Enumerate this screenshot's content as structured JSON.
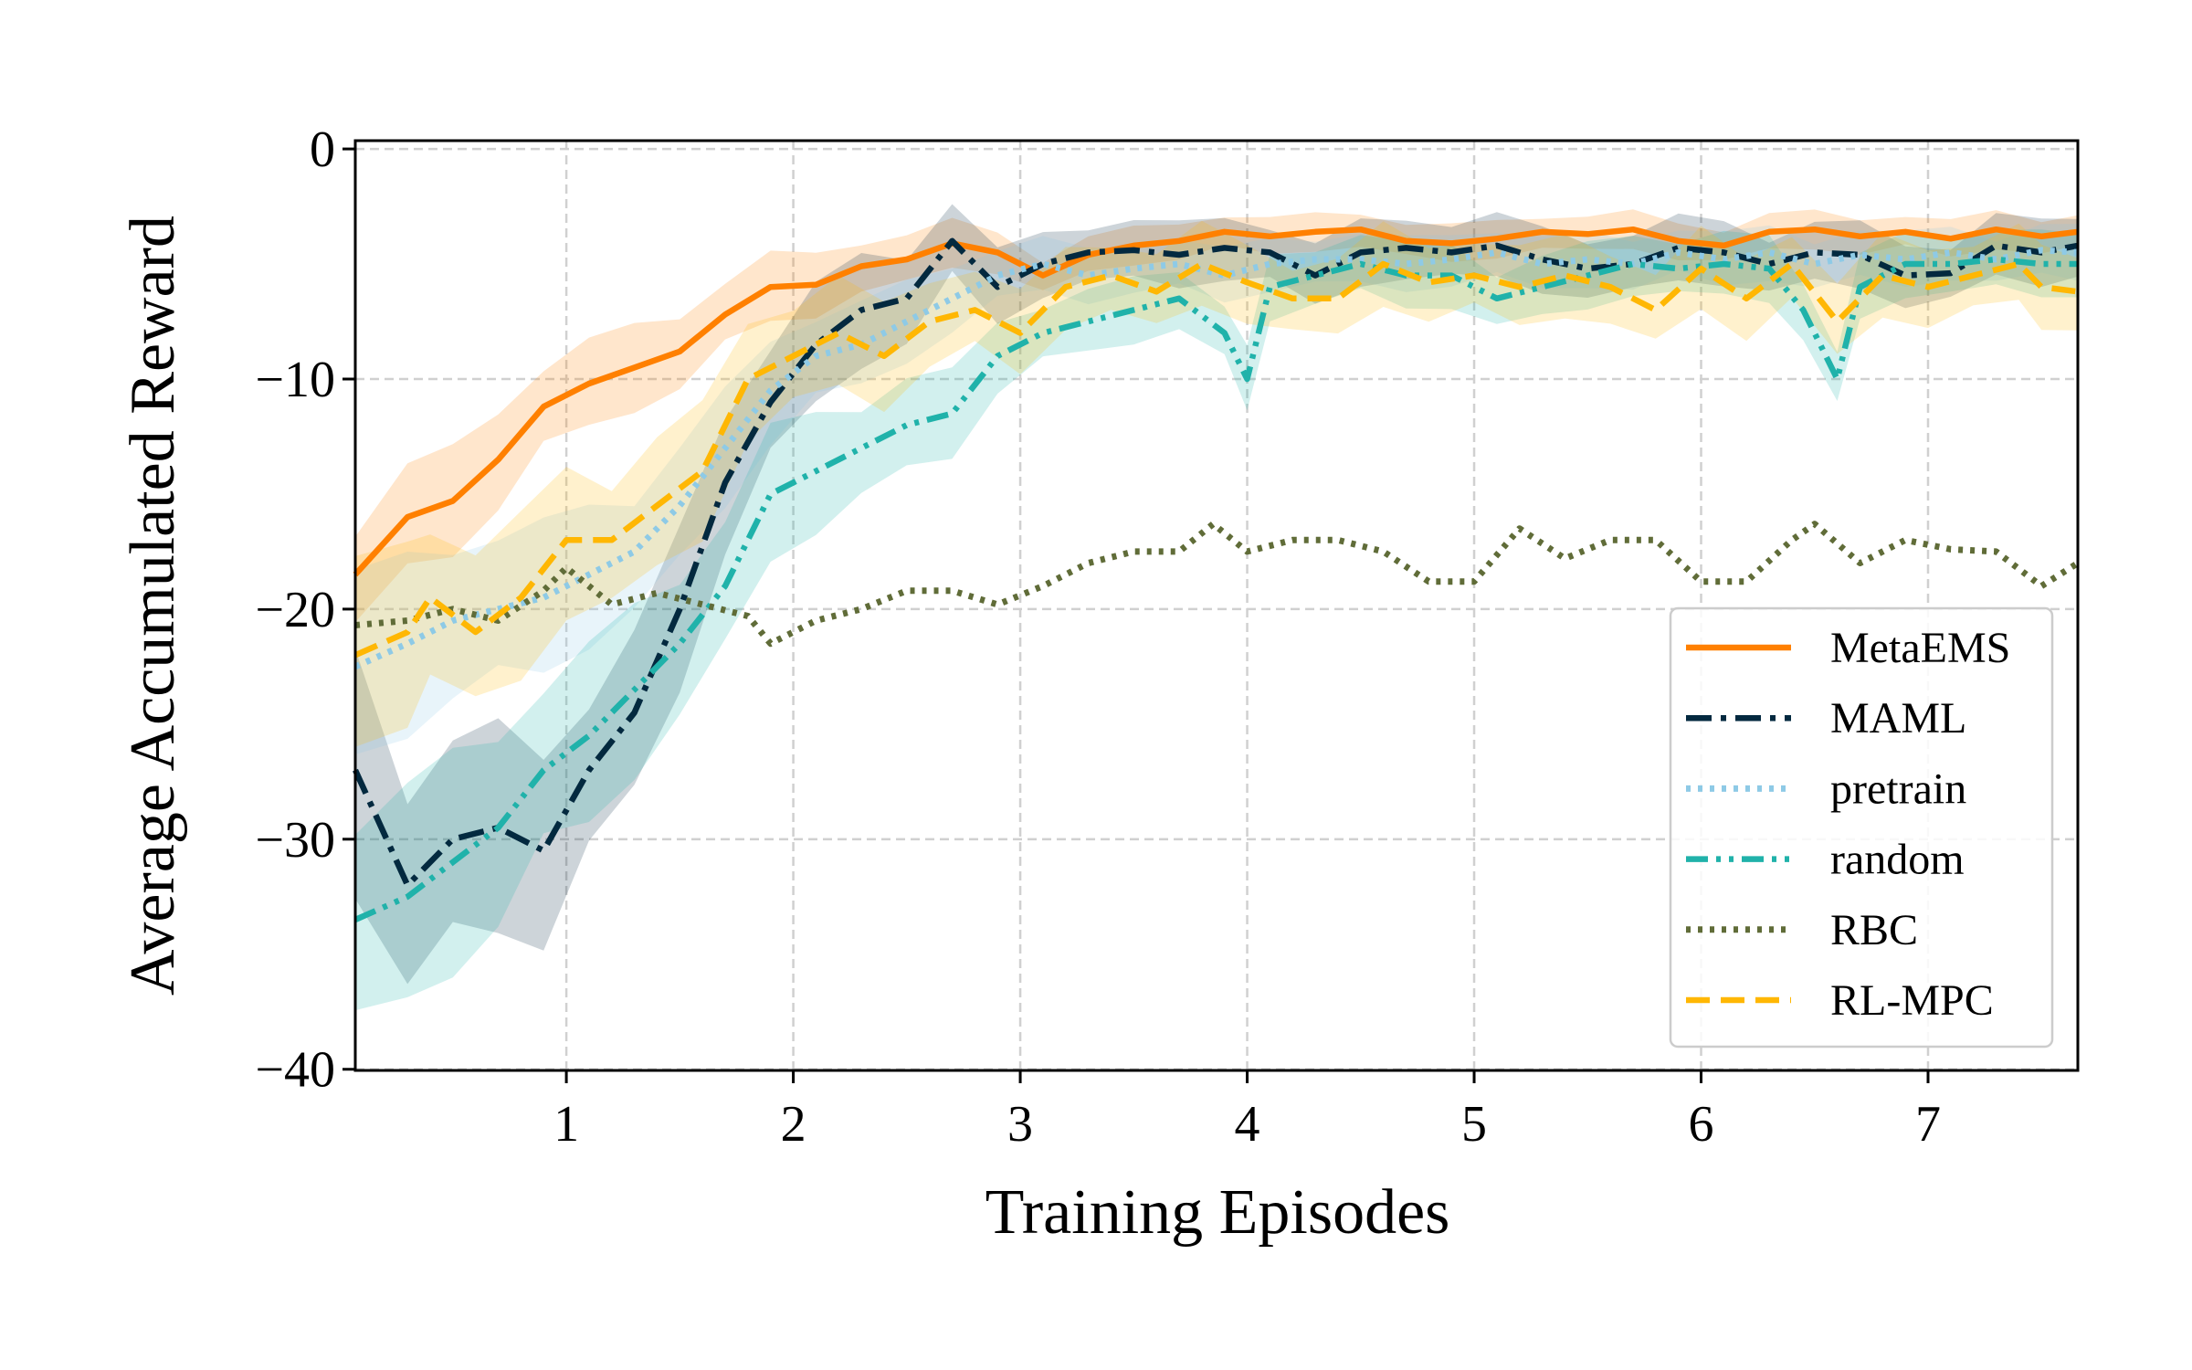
{
  "chart_data": {
    "type": "line",
    "title": "",
    "xlabel": "Training Episodes",
    "ylabel": "Average Accumulated Reward",
    "xlim": [
      0.07,
      7.66
    ],
    "ylim": [
      -40.05,
      0.36
    ],
    "xticks": [
      1,
      2,
      3,
      4,
      5,
      6,
      7
    ],
    "xtick_labels": [
      "1",
      "2",
      "3",
      "4",
      "5",
      "6",
      "7"
    ],
    "yticks": [
      0,
      -10,
      -20,
      -30,
      -40
    ],
    "ytick_labels": [
      "0",
      "−10",
      "−20",
      "−30",
      "−40"
    ],
    "grid": true,
    "legend_position": "lower-right",
    "series": [
      {
        "name": "MetaEMS",
        "color": "#ff8000",
        "style": "solid",
        "std_early": 2.2,
        "std_late": 0.7,
        "points": [
          [
            0.07,
            -18.5
          ],
          [
            0.3,
            -16
          ],
          [
            0.5,
            -15.3
          ],
          [
            0.7,
            -13.5
          ],
          [
            0.9,
            -11.2
          ],
          [
            1.1,
            -10.2
          ],
          [
            1.3,
            -9.5
          ],
          [
            1.5,
            -8.8
          ],
          [
            1.7,
            -7.2
          ],
          [
            1.9,
            -6
          ],
          [
            2.1,
            -5.9
          ],
          [
            2.3,
            -5.1
          ],
          [
            2.5,
            -4.8
          ],
          [
            2.7,
            -4.1
          ],
          [
            2.9,
            -4.5
          ],
          [
            3.1,
            -5.5
          ],
          [
            3.3,
            -4.6
          ],
          [
            3.5,
            -4.2
          ],
          [
            3.7,
            -4.0
          ],
          [
            3.9,
            -3.6
          ],
          [
            4.1,
            -3.8
          ],
          [
            4.3,
            -3.6
          ],
          [
            4.5,
            -3.5
          ],
          [
            4.7,
            -4
          ],
          [
            4.9,
            -4.1
          ],
          [
            5.1,
            -3.9
          ],
          [
            5.3,
            -3.6
          ],
          [
            5.5,
            -3.7
          ],
          [
            5.7,
            -3.5
          ],
          [
            5.9,
            -4.0
          ],
          [
            6.1,
            -4.2
          ],
          [
            6.3,
            -3.6
          ],
          [
            6.5,
            -3.5
          ],
          [
            6.7,
            -3.8
          ],
          [
            6.9,
            -3.6
          ],
          [
            7.1,
            -3.9
          ],
          [
            7.3,
            -3.5
          ],
          [
            7.5,
            -3.8
          ],
          [
            7.66,
            -3.6
          ]
        ]
      },
      {
        "name": "MAML",
        "color": "#03293f",
        "style": "dashdot",
        "std_early": 4.5,
        "std_late": 1.2,
        "points": [
          [
            0.07,
            -27
          ],
          [
            0.3,
            -32
          ],
          [
            0.5,
            -30
          ],
          [
            0.7,
            -29.5
          ],
          [
            0.9,
            -30.5
          ],
          [
            1.1,
            -27
          ],
          [
            1.3,
            -24.5
          ],
          [
            1.5,
            -20
          ],
          [
            1.7,
            -14.5
          ],
          [
            1.9,
            -11
          ],
          [
            2.1,
            -8.5
          ],
          [
            2.3,
            -7
          ],
          [
            2.5,
            -6.5
          ],
          [
            2.7,
            -4
          ],
          [
            2.9,
            -6
          ],
          [
            3.1,
            -5
          ],
          [
            3.3,
            -4.5
          ],
          [
            3.5,
            -4.4
          ],
          [
            3.7,
            -4.6
          ],
          [
            3.9,
            -4.3
          ],
          [
            4.1,
            -4.5
          ],
          [
            4.3,
            -5.5
          ],
          [
            4.5,
            -4.5
          ],
          [
            4.7,
            -4.3
          ],
          [
            4.9,
            -4.5
          ],
          [
            5.1,
            -4.2
          ],
          [
            5.3,
            -4.8
          ],
          [
            5.5,
            -5.2
          ],
          [
            5.7,
            -5
          ],
          [
            5.9,
            -4.3
          ],
          [
            6.1,
            -4.5
          ],
          [
            6.3,
            -5
          ],
          [
            6.5,
            -4.5
          ],
          [
            6.7,
            -4.6
          ],
          [
            6.9,
            -5.5
          ],
          [
            7.1,
            -5.4
          ],
          [
            7.3,
            -4.2
          ],
          [
            7.5,
            -4.5
          ],
          [
            7.66,
            -4.2
          ]
        ]
      },
      {
        "name": "pretrain",
        "color": "#8ecae6",
        "style": "dotted",
        "std_early": 3.5,
        "std_late": 1.0,
        "points": [
          [
            0.07,
            -22.5
          ],
          [
            0.3,
            -21.5
          ],
          [
            0.5,
            -20.5
          ],
          [
            0.7,
            -20
          ],
          [
            0.9,
            -19.5
          ],
          [
            1.1,
            -18.5
          ],
          [
            1.3,
            -17.5
          ],
          [
            1.5,
            -15.5
          ],
          [
            1.7,
            -13
          ],
          [
            1.9,
            -10.5
          ],
          [
            2.1,
            -9
          ],
          [
            2.3,
            -8.5
          ],
          [
            2.5,
            -7.5
          ],
          [
            2.7,
            -6.5
          ],
          [
            2.9,
            -5.5
          ],
          [
            3.1,
            -5
          ],
          [
            3.3,
            -5.5
          ],
          [
            3.5,
            -5.2
          ],
          [
            3.7,
            -5
          ],
          [
            3.9,
            -5.5
          ],
          [
            4.1,
            -5
          ],
          [
            4.3,
            -4.8
          ],
          [
            4.5,
            -4.8
          ],
          [
            4.7,
            -5
          ],
          [
            4.9,
            -4.8
          ],
          [
            5.1,
            -4.5
          ],
          [
            5.3,
            -5
          ],
          [
            5.5,
            -4.8
          ],
          [
            5.7,
            -5
          ],
          [
            5.9,
            -4.5
          ],
          [
            6.1,
            -4.8
          ],
          [
            6.3,
            -4.5
          ],
          [
            6.5,
            -5
          ],
          [
            6.7,
            -4.6
          ],
          [
            6.9,
            -4.8
          ],
          [
            7.1,
            -4.5
          ],
          [
            7.3,
            -4.8
          ],
          [
            7.5,
            -4.4
          ],
          [
            7.66,
            -4.5
          ]
        ]
      },
      {
        "name": "random",
        "color": "#20b2aa",
        "style": "dashdotdot",
        "std_early": 4.5,
        "std_late": 1.2,
        "points": [
          [
            0.07,
            -33.5
          ],
          [
            0.3,
            -32.5
          ],
          [
            0.5,
            -31
          ],
          [
            0.7,
            -29.5
          ],
          [
            0.9,
            -27
          ],
          [
            1.1,
            -25.5
          ],
          [
            1.3,
            -23.5
          ],
          [
            1.5,
            -21.5
          ],
          [
            1.7,
            -19
          ],
          [
            1.9,
            -15
          ],
          [
            2.1,
            -14
          ],
          [
            2.3,
            -13
          ],
          [
            2.5,
            -12
          ],
          [
            2.7,
            -11.5
          ],
          [
            2.9,
            -9
          ],
          [
            3.1,
            -8
          ],
          [
            3.3,
            -7.5
          ],
          [
            3.5,
            -7
          ],
          [
            3.7,
            -6.5
          ],
          [
            3.9,
            -8
          ],
          [
            4.0,
            -10
          ],
          [
            4.1,
            -6
          ],
          [
            4.3,
            -5.5
          ],
          [
            4.5,
            -5
          ],
          [
            4.7,
            -5.5
          ],
          [
            4.9,
            -5.5
          ],
          [
            5.1,
            -6.5
          ],
          [
            5.3,
            -6
          ],
          [
            5.5,
            -5.5
          ],
          [
            5.7,
            -5
          ],
          [
            5.9,
            -5.2
          ],
          [
            6.1,
            -5
          ],
          [
            6.3,
            -5.2
          ],
          [
            6.45,
            -7
          ],
          [
            6.6,
            -10
          ],
          [
            6.7,
            -6
          ],
          [
            6.9,
            -5
          ],
          [
            7.1,
            -5
          ],
          [
            7.3,
            -4.8
          ],
          [
            7.5,
            -5
          ],
          [
            7.66,
            -5
          ]
        ]
      },
      {
        "name": "RBC",
        "color": "#606c38",
        "style": "dotted",
        "std_early": 0,
        "std_late": 0,
        "points": [
          [
            0.07,
            -20.7
          ],
          [
            0.3,
            -20.5
          ],
          [
            0.5,
            -20
          ],
          [
            0.7,
            -20.5
          ],
          [
            0.9,
            -19.2
          ],
          [
            1.0,
            -18.2
          ],
          [
            1.2,
            -19.8
          ],
          [
            1.4,
            -19.3
          ],
          [
            1.6,
            -19.8
          ],
          [
            1.8,
            -20.3
          ],
          [
            1.9,
            -21.5
          ],
          [
            2.1,
            -20.5
          ],
          [
            2.3,
            -20
          ],
          [
            2.5,
            -19.2
          ],
          [
            2.7,
            -19.2
          ],
          [
            2.9,
            -19.8
          ],
          [
            3.1,
            -19
          ],
          [
            3.3,
            -18
          ],
          [
            3.5,
            -17.5
          ],
          [
            3.7,
            -17.5
          ],
          [
            3.85,
            -16.3
          ],
          [
            4.0,
            -17.5
          ],
          [
            4.2,
            -17
          ],
          [
            4.4,
            -17
          ],
          [
            4.6,
            -17.5
          ],
          [
            4.8,
            -18.8
          ],
          [
            5.0,
            -18.8
          ],
          [
            5.2,
            -16.5
          ],
          [
            5.4,
            -17.8
          ],
          [
            5.6,
            -17
          ],
          [
            5.8,
            -17
          ],
          [
            6.0,
            -18.8
          ],
          [
            6.2,
            -18.8
          ],
          [
            6.4,
            -17
          ],
          [
            6.5,
            -16.3
          ],
          [
            6.7,
            -18
          ],
          [
            6.9,
            -17
          ],
          [
            7.1,
            -17.4
          ],
          [
            7.3,
            -17.5
          ],
          [
            7.5,
            -19
          ],
          [
            7.66,
            -18
          ]
        ]
      },
      {
        "name": "RL-MPC",
        "color": "#ffb703",
        "style": "dashed",
        "std_early": 3.5,
        "std_late": 1.5,
        "points": [
          [
            0.07,
            -22
          ],
          [
            0.3,
            -21
          ],
          [
            0.4,
            -19.5
          ],
          [
            0.6,
            -21
          ],
          [
            0.8,
            -19.5
          ],
          [
            1.0,
            -17
          ],
          [
            1.2,
            -17
          ],
          [
            1.4,
            -15.5
          ],
          [
            1.6,
            -14
          ],
          [
            1.8,
            -10
          ],
          [
            2.0,
            -9
          ],
          [
            2.2,
            -8
          ],
          [
            2.4,
            -9
          ],
          [
            2.6,
            -7.5
          ],
          [
            2.8,
            -7
          ],
          [
            3.0,
            -8
          ],
          [
            3.2,
            -6
          ],
          [
            3.4,
            -5.5
          ],
          [
            3.6,
            -6.2
          ],
          [
            3.8,
            -5
          ],
          [
            4.0,
            -5.8
          ],
          [
            4.2,
            -6.5
          ],
          [
            4.4,
            -6.5
          ],
          [
            4.6,
            -5
          ],
          [
            4.8,
            -5.8
          ],
          [
            5.0,
            -5.5
          ],
          [
            5.2,
            -6
          ],
          [
            5.4,
            -5.5
          ],
          [
            5.6,
            -6
          ],
          [
            5.8,
            -7
          ],
          [
            6.0,
            -5.2
          ],
          [
            6.2,
            -6.5
          ],
          [
            6.4,
            -5
          ],
          [
            6.6,
            -7.5
          ],
          [
            6.8,
            -5.5
          ],
          [
            7.0,
            -6
          ],
          [
            7.2,
            -5.5
          ],
          [
            7.4,
            -5
          ],
          [
            7.5,
            -6
          ],
          [
            7.66,
            -6.2
          ]
        ]
      }
    ]
  }
}
